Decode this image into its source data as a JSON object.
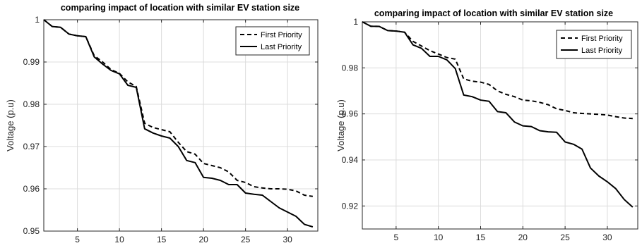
{
  "chart_data": [
    {
      "type": "line",
      "title": "comparing impact of location with similar EV station size",
      "xlabel": "",
      "ylabel": "Voltage (p.u)",
      "xlim": [
        1,
        33.6
      ],
      "ylim": [
        0.95,
        1.0
      ],
      "xticks": [
        5,
        10,
        15,
        20,
        25,
        30
      ],
      "yticks": [
        0.95,
        0.96,
        0.97,
        0.98,
        0.99,
        1
      ],
      "ytick_labels": [
        "0.95",
        "0.96",
        "0.97",
        "0.98",
        "0.99",
        "1"
      ],
      "grid": true,
      "legend_position": "top-right",
      "x": [
        1,
        2,
        3,
        4,
        5,
        6,
        7,
        8,
        9,
        10,
        11,
        12,
        13,
        14,
        15,
        16,
        17,
        18,
        19,
        20,
        21,
        22,
        23,
        24,
        25,
        26,
        27,
        28,
        29,
        30,
        31,
        32,
        33
      ],
      "series": [
        {
          "name": "First Priority",
          "dash": "dashed",
          "values": [
            1.0,
            0.9984,
            0.9982,
            0.9966,
            0.9962,
            0.996,
            0.9915,
            0.99,
            0.9882,
            0.9873,
            0.9853,
            0.9842,
            0.9755,
            0.9745,
            0.974,
            0.9735,
            0.971,
            0.9688,
            0.9682,
            0.966,
            0.9655,
            0.965,
            0.964,
            0.962,
            0.9615,
            0.9605,
            0.9602,
            0.96,
            0.96,
            0.9599,
            0.9595,
            0.9585,
            0.9582
          ]
        },
        {
          "name": "Last Priority",
          "dash": "solid",
          "values": [
            1.0,
            0.9984,
            0.9982,
            0.9966,
            0.9962,
            0.996,
            0.9912,
            0.9895,
            0.988,
            0.9872,
            0.9845,
            0.984,
            0.9742,
            0.9732,
            0.9725,
            0.972,
            0.97,
            0.9667,
            0.9662,
            0.9627,
            0.9625,
            0.962,
            0.961,
            0.961,
            0.959,
            0.9587,
            0.9585,
            0.957,
            0.9555,
            0.9545,
            0.9535,
            0.9516,
            0.951
          ]
        }
      ]
    },
    {
      "type": "line",
      "title": "comparing impact of location with similar EV station size",
      "xlabel": "",
      "ylabel": "Voltage (p.u)",
      "xlim": [
        1,
        33.6
      ],
      "ylim": [
        0.91,
        1.0
      ],
      "xticks": [
        5,
        10,
        15,
        20,
        25,
        30
      ],
      "yticks": [
        0.92,
        0.94,
        0.96,
        0.98,
        1
      ],
      "ytick_labels": [
        "0.92",
        "0.94",
        "0.96",
        "0.98",
        "1"
      ],
      "grid": true,
      "legend_position": "top-right",
      "x": [
        1,
        2,
        3,
        4,
        5,
        6,
        7,
        8,
        9,
        10,
        11,
        12,
        13,
        14,
        15,
        16,
        17,
        18,
        19,
        20,
        21,
        22,
        23,
        24,
        25,
        26,
        27,
        28,
        29,
        30,
        31,
        32,
        33
      ],
      "series": [
        {
          "name": "First Priority",
          "dash": "dashed",
          "values": [
            1.0,
            0.9981,
            0.998,
            0.9962,
            0.996,
            0.9955,
            0.9915,
            0.9895,
            0.9875,
            0.986,
            0.9845,
            0.9838,
            0.9752,
            0.9742,
            0.9738,
            0.9728,
            0.97,
            0.9685,
            0.9675,
            0.966,
            0.9657,
            0.965,
            0.964,
            0.9622,
            0.9615,
            0.9605,
            0.9602,
            0.96,
            0.9598,
            0.9595,
            0.9588,
            0.9582,
            0.958
          ]
        },
        {
          "name": "Last Priority",
          "dash": "solid",
          "values": [
            1.0,
            0.9981,
            0.998,
            0.9962,
            0.996,
            0.9955,
            0.99,
            0.9885,
            0.985,
            0.985,
            0.9835,
            0.9797,
            0.9682,
            0.9675,
            0.966,
            0.9655,
            0.961,
            0.9605,
            0.9565,
            0.9548,
            0.9545,
            0.9527,
            0.9522,
            0.952,
            0.9478,
            0.9468,
            0.9447,
            0.9365,
            0.933,
            0.9305,
            0.9275,
            0.9228,
            0.9195
          ]
        }
      ]
    }
  ]
}
